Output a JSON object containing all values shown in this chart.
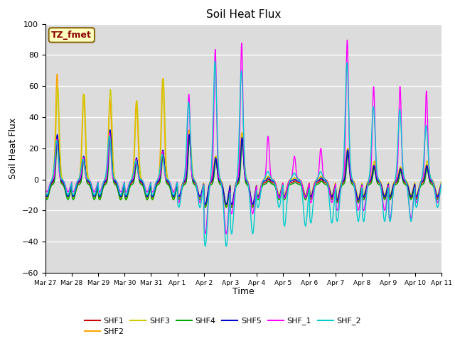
{
  "title": "Soil Heat Flux",
  "xlabel": "Time",
  "ylabel": "Soil Heat Flux",
  "ylim": [
    -60,
    100
  ],
  "xlim": [
    0,
    15
  ],
  "annotation_text": "TZ_fmet",
  "annotation_color": "#8B0000",
  "annotation_bg": "#FFFFC0",
  "annotation_edge": "#8B6914",
  "bg_color": "#DCDCDC",
  "tick_labels": [
    "Mar 27",
    "Mar 28",
    "Mar 29",
    "Mar 30",
    "Mar 31",
    "Apr 1",
    "Apr 2",
    "Apr 3",
    "Apr 4",
    "Apr 5",
    "Apr 6",
    "Apr 7",
    "Apr 8",
    "Apr 9",
    "Apr 10",
    "Apr 11"
  ],
  "series_colors": {
    "SHF1": "#CC0000",
    "SHF2": "#FFA500",
    "SHF3": "#CCCC00",
    "SHF4": "#00AA00",
    "SHF5": "#0000CC",
    "SHF_1": "#FF00FF",
    "SHF_2": "#00CCCC"
  },
  "legend_order": [
    "SHF1",
    "SHF2",
    "SHF3",
    "SHF4",
    "SHF5",
    "SHF_1",
    "SHF_2"
  ]
}
